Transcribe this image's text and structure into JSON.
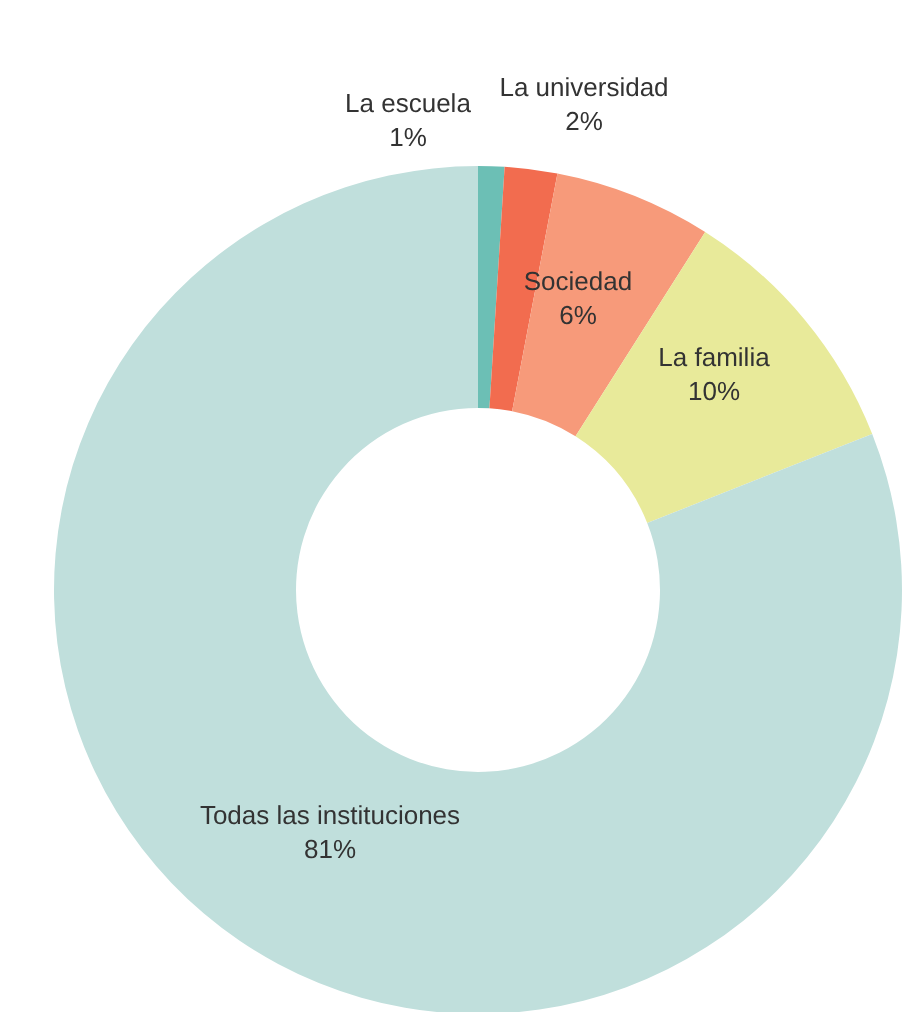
{
  "chart_data": {
    "type": "donut",
    "categories": [
      "La escuela",
      "La universidad",
      "Sociedad",
      "La familia",
      "Todas las instituciones"
    ],
    "values": [
      1,
      2,
      6,
      10,
      81
    ],
    "value_labels": [
      "1%",
      "2%",
      "6%",
      "10%",
      "81%"
    ],
    "colors": [
      "#6cbfb5",
      "#f26c4f",
      "#f79a7a",
      "#e8ea9a",
      "#c0dfdc"
    ]
  }
}
